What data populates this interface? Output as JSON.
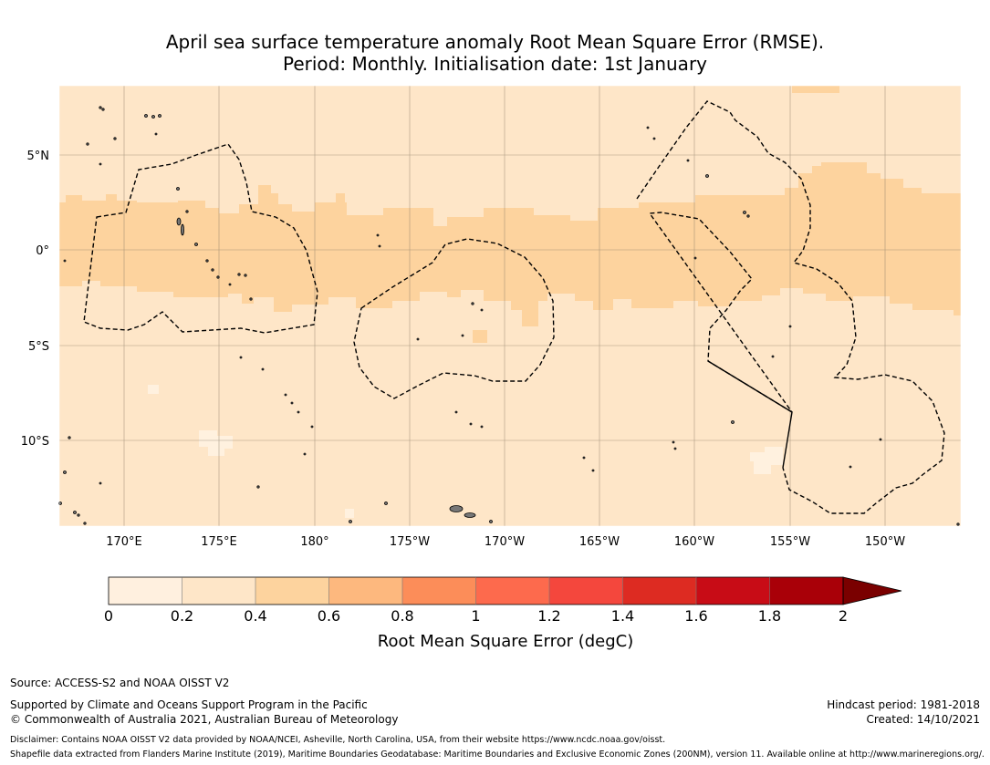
{
  "title": {
    "line1": "April sea surface temperature anomaly Root Mean Square Error (RMSE).",
    "line2": "Period: Monthly. Initialisation date: 1st January"
  },
  "map": {
    "lon_labels": [
      "170°E",
      "175°E",
      "180°",
      "175°W",
      "170°W",
      "165°W",
      "160°W",
      "155°W",
      "150°W"
    ],
    "lat_labels": [
      "5°N",
      "0°",
      "5°S",
      "10°S"
    ],
    "colors": {
      "background": "#fee6c8",
      "equatorial_band": "#fdd39e",
      "low_patch": "#fff1df",
      "land": "#777777",
      "gridline": "#8a7a66",
      "eez_line": "#000000"
    }
  },
  "colorbar": {
    "tick_labels": [
      "0",
      "0.2",
      "0.4",
      "0.6",
      "0.8",
      "1",
      "1.2",
      "1.4",
      "1.6",
      "1.8",
      "2"
    ],
    "colors": [
      "#fff0df",
      "#fee6c8",
      "#fdd39e",
      "#fdb87e",
      "#fc8d59",
      "#fd6a4d",
      "#f4473d",
      "#dd2b22",
      "#c80c16",
      "#a90008",
      "#7a0000"
    ],
    "label": "Root Mean Square Error (degC)"
  },
  "footer": {
    "source": "Source: ACCESS-S2 and NOAA OISST V2",
    "supported": "Supported by Climate and Oceans Support Program in the Pacific",
    "copyright": "© Commonwealth of Australia 2021, Australian Bureau of Meteorology",
    "hindcast": "Hindcast period: 1981-2018",
    "created": "Created: 14/10/2021",
    "disclaimer": "Disclaimer: Contains NOAA OISST V2 data provided by NOAA/NCEI, Asheville, North Carolina, USA, from their website https://www.ncdc.noaa.gov/oisst.",
    "shapefile": "Shapefile data extracted from Flanders Marine Institute (2019), Maritime Boundaries Geodatabase: Maritime Boundaries and Exclusive Economic Zones (200NM), version 11. Available online at http://www.marineregions.org/."
  }
}
